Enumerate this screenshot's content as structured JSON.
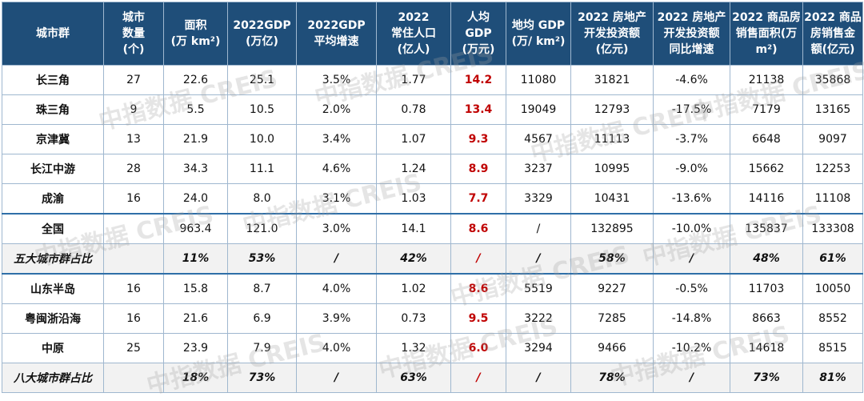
{
  "headers": [
    [
      "城市群"
    ],
    [
      "城市",
      "数量",
      "(个)"
    ],
    [
      "面积",
      "(万 km²)"
    ],
    [
      "2022GDP",
      "(万亿)"
    ],
    [
      "2022GDP",
      "平均增速"
    ],
    [
      "2022",
      "常住人口",
      "(亿人)"
    ],
    [
      "人均",
      "GDP",
      "(万元)"
    ],
    [
      "地均 GDP",
      "(万/ km²)"
    ],
    [
      "2022 房地产",
      "开发投资额",
      "(亿元)"
    ],
    [
      "2022 房地产",
      "开发投资额",
      "同比增速"
    ],
    [
      "2022 商品房",
      "销售面积(万",
      "m²)"
    ],
    [
      "2022 商品",
      "房销售金",
      "额(亿元)"
    ]
  ],
  "rows": [
    {
      "type": "data",
      "cells": [
        "长三角",
        "27",
        "22.6",
        "25.1",
        "3.5%",
        "1.77",
        "14.2",
        "11080",
        "31821",
        "-4.6%",
        "21138",
        "35868"
      ]
    },
    {
      "type": "data",
      "cells": [
        "珠三角",
        "9",
        "5.5",
        "10.5",
        "2.0%",
        "0.78",
        "13.4",
        "19049",
        "12793",
        "-17.5%",
        "7179",
        "13165"
      ]
    },
    {
      "type": "data",
      "cells": [
        "京津冀",
        "13",
        "21.9",
        "10.0",
        "3.4%",
        "1.07",
        "9.3",
        "4567",
        "11113",
        "-3.7%",
        "6648",
        "9097"
      ]
    },
    {
      "type": "data",
      "cells": [
        "长江中游",
        "28",
        "34.3",
        "11.1",
        "4.6%",
        "1.24",
        "8.9",
        "3237",
        "10995",
        "-9.0%",
        "15662",
        "12253"
      ]
    },
    {
      "type": "data",
      "cells": [
        "成渝",
        "16",
        "24.0",
        "8.0",
        "3.1%",
        "1.03",
        "7.7",
        "3329",
        "10431",
        "-13.6%",
        "14116",
        "11108"
      ]
    },
    {
      "type": "data",
      "sep": true,
      "cells": [
        "全国",
        "",
        "963.4",
        "121.0",
        "3.0%",
        "14.1",
        "8.6",
        "/",
        "132895",
        "-10.0%",
        "135837",
        "133308"
      ]
    },
    {
      "type": "share",
      "cells": [
        "五大城市群占比",
        "",
        "11%",
        "53%",
        "/",
        "42%",
        "/",
        "/",
        "58%",
        "/",
        "48%",
        "61%"
      ]
    },
    {
      "type": "data",
      "sep": true,
      "cells": [
        "山东半岛",
        "16",
        "15.8",
        "8.7",
        "4.0%",
        "1.02",
        "8.6",
        "5519",
        "9227",
        "-0.5%",
        "11703",
        "10050"
      ]
    },
    {
      "type": "data",
      "cells": [
        "粤闽浙沿海",
        "16",
        "21.6",
        "6.9",
        "3.9%",
        "0.73",
        "9.5",
        "3222",
        "7285",
        "-14.8%",
        "8663",
        "8552"
      ]
    },
    {
      "type": "data",
      "cells": [
        "中原",
        "25",
        "23.9",
        "7.9",
        "4.0%",
        "1.32",
        "6.0",
        "3294",
        "9466",
        "-10.2%",
        "14618",
        "8515"
      ]
    },
    {
      "type": "share",
      "cells": [
        "八大城市群占比",
        "",
        "18%",
        "73%",
        "/",
        "63%",
        "/",
        "/",
        "78%",
        "/",
        "73%",
        "81%"
      ]
    }
  ],
  "watermark": {
    "cn": "中指数据",
    "en": "CREIS"
  },
  "colors": {
    "header_bg": "#1f4e79",
    "highlight": "#c00000",
    "share_bg": "#f2f2f2",
    "border": "#9fb7cf"
  }
}
